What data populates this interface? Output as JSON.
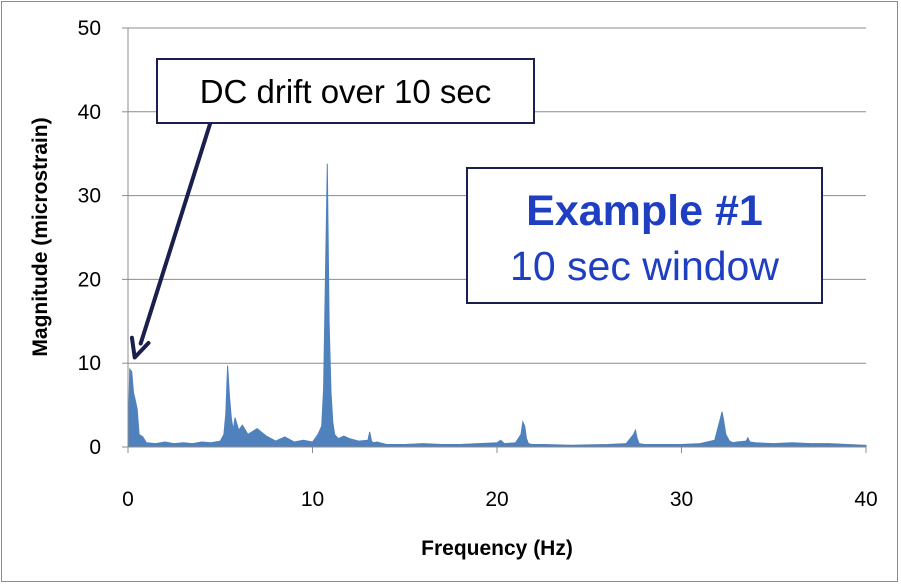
{
  "chart_data": {
    "type": "area",
    "title": "",
    "xlabel": "Frequency (Hz)",
    "ylabel": "Magnitude (microstrain)",
    "xlim": [
      0,
      40
    ],
    "ylim": [
      0,
      50
    ],
    "xticks": [
      0,
      10,
      20,
      30,
      40
    ],
    "yticks": [
      0,
      10,
      20,
      30,
      40,
      50
    ],
    "grid": "horizontal",
    "series_color": "#4f81bd",
    "series": [
      {
        "x": [
          0,
          0.1,
          0.2,
          0.3,
          0.4,
          0.5,
          0.6,
          0.8,
          1.0,
          1.5,
          2.0,
          2.5,
          3.0,
          3.5,
          4.0,
          4.5,
          5.0,
          5.2,
          5.3,
          5.4,
          5.5,
          5.6,
          5.7,
          5.8,
          6.0,
          6.2,
          6.5,
          7.0,
          7.5,
          8.0,
          8.5,
          9.0,
          9.5,
          10.0,
          10.3,
          10.5,
          10.6,
          10.7,
          10.8,
          10.9,
          11.0,
          11.1,
          11.2,
          11.4,
          11.7,
          12.0,
          12.5,
          13.0,
          13.1,
          13.2,
          13.3,
          13.5,
          14,
          15,
          16,
          17,
          18,
          19,
          20,
          20.2,
          20.4,
          21,
          21.3,
          21.4,
          21.5,
          21.6,
          21.7,
          21.9,
          22.5,
          24,
          26,
          27,
          27.4,
          27.5,
          27.6,
          27.7,
          28,
          29,
          30,
          31,
          31.8,
          32.0,
          32.2,
          32.3,
          32.4,
          32.6,
          32.8,
          33.0,
          33.5,
          33.6,
          33.7,
          34,
          35,
          36,
          37,
          38,
          39,
          40
        ],
        "y": [
          0.2,
          9.3,
          9.0,
          6.5,
          5.5,
          4.5,
          1.5,
          1.2,
          0.5,
          0.4,
          0.6,
          0.4,
          0.5,
          0.4,
          0.6,
          0.5,
          0.7,
          1.5,
          4.0,
          9.7,
          6.0,
          3.5,
          2.0,
          3.5,
          2.0,
          2.6,
          1.5,
          2.2,
          1.3,
          0.7,
          1.2,
          0.6,
          0.8,
          0.6,
          1.5,
          2.5,
          7.0,
          20.0,
          33.8,
          15.0,
          6.5,
          3.0,
          1.5,
          1.0,
          1.3,
          1.0,
          0.7,
          0.8,
          1.8,
          0.7,
          0.5,
          0.6,
          0.3,
          0.3,
          0.4,
          0.3,
          0.3,
          0.4,
          0.5,
          0.8,
          0.4,
          0.5,
          1.5,
          3.0,
          2.5,
          1.0,
          0.4,
          0.3,
          0.3,
          0.2,
          0.3,
          0.4,
          1.5,
          2.0,
          1.0,
          0.4,
          0.3,
          0.3,
          0.3,
          0.4,
          0.8,
          2.5,
          4.2,
          3.0,
          1.5,
          0.7,
          0.5,
          0.6,
          0.7,
          1.1,
          0.6,
          0.5,
          0.4,
          0.5,
          0.4,
          0.4,
          0.3,
          0.2
        ]
      }
    ],
    "annotations": [
      {
        "text": "DC drift over 10 sec",
        "points_to": {
          "x": 0.2,
          "y": 10.2
        }
      }
    ]
  },
  "callout": {
    "title": "Example #1",
    "subtitle": "10 sec window"
  }
}
